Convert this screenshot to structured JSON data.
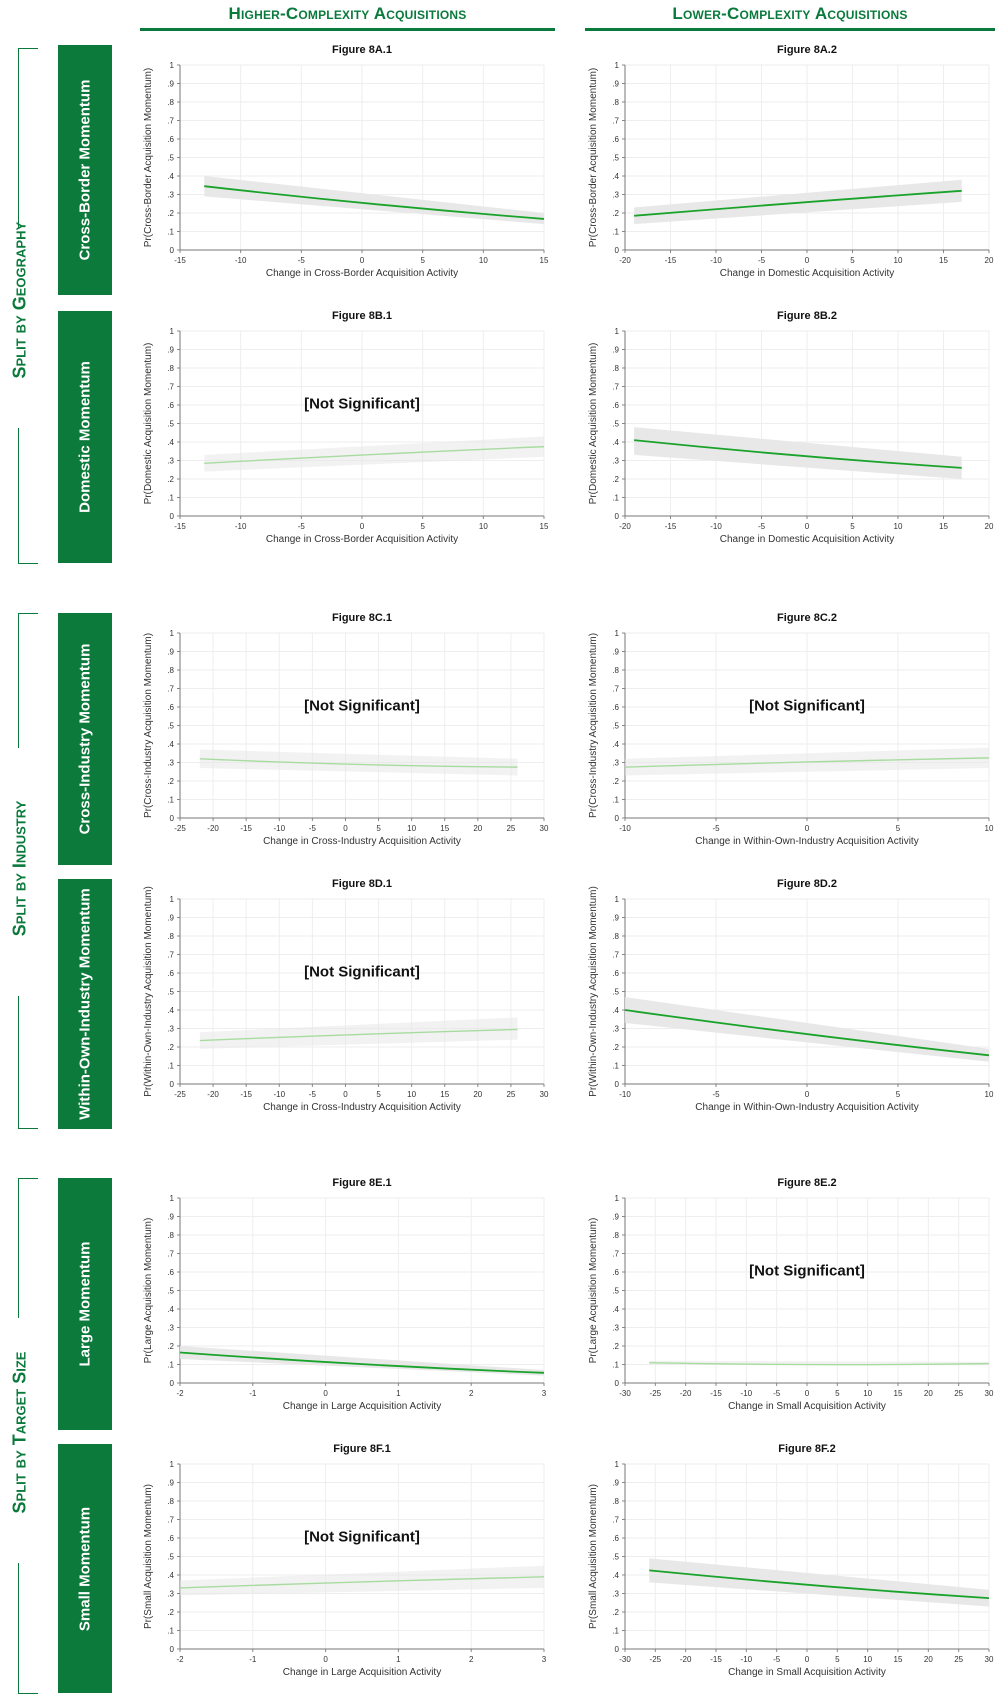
{
  "headers": {
    "higher": "Higher-Complexity Acquisitions",
    "lower": "Lower-Complexity Acquisitions"
  },
  "splits": [
    {
      "label": "Split by Geography"
    },
    {
      "label": "Split by Industry"
    },
    {
      "label": "Split by Target Size"
    }
  ],
  "rows": [
    {
      "label": "Cross-Border Momentum"
    },
    {
      "label": "Domestic Momentum"
    },
    {
      "label": "Cross-Industry Momentum"
    },
    {
      "label": "Within-Own-Industry Momentum"
    },
    {
      "label": "Large Momentum"
    },
    {
      "label": "Small Momentum"
    }
  ],
  "not_significant_label": "[Not Significant]",
  "colors": {
    "brand_green": "#0a7a3c",
    "line_sig": "#1aa32a",
    "line_ns": "#a8dba0",
    "ci_band": "#e6e6e6"
  },
  "chart_data": [
    {
      "type": "line",
      "title": "Figure 8A.1",
      "xlabel": "Change in Cross-Border Acquisition Activity",
      "ylabel": "Pr(Cross-Border Acquisition Momentum)",
      "xlim": [
        -15,
        15
      ],
      "xticks": [
        "-15",
        "-10",
        "-5",
        "0",
        "5",
        "10",
        "15"
      ],
      "ylim": [
        0,
        1
      ],
      "yticks": [
        "0",
        ".1",
        ".2",
        ".3",
        ".4",
        ".5",
        ".6",
        ".7",
        ".8",
        ".9",
        "1"
      ],
      "significant": true,
      "x": [
        -13,
        15
      ],
      "y": [
        0.345,
        0.168
      ],
      "ci_low": [
        0.29,
        0.14
      ],
      "ci_high": [
        0.4,
        0.2
      ]
    },
    {
      "type": "line",
      "title": "Figure 8A.2",
      "xlabel": "Change in Domestic Acquisition Activity",
      "ylabel": "Pr(Cross-Border Acquisition Momentum)",
      "xlim": [
        -20,
        20
      ],
      "xticks": [
        "-20",
        "-15",
        "-10",
        "-5",
        "0",
        "5",
        "10",
        "15",
        "20"
      ],
      "ylim": [
        0,
        1
      ],
      "yticks": [
        "0",
        ".1",
        ".2",
        ".3",
        ".4",
        ".5",
        ".6",
        ".7",
        ".8",
        ".9",
        "1"
      ],
      "significant": true,
      "x": [
        -19,
        17
      ],
      "y": [
        0.185,
        0.32
      ],
      "ci_low": [
        0.14,
        0.26
      ],
      "ci_high": [
        0.23,
        0.38
      ]
    },
    {
      "type": "line",
      "title": "Figure 8B.1",
      "xlabel": "Change in Cross-Border Acquisition Activity",
      "ylabel": "Pr(Domestic Acquisition Momentum)",
      "xlim": [
        -15,
        15
      ],
      "xticks": [
        "-15",
        "-10",
        "-5",
        "0",
        "5",
        "10",
        "15"
      ],
      "ylim": [
        0,
        1
      ],
      "yticks": [
        "0",
        ".1",
        ".2",
        ".3",
        ".4",
        ".5",
        ".6",
        ".7",
        ".8",
        ".9",
        "1"
      ],
      "significant": false,
      "x": [
        -13,
        15
      ],
      "y": [
        0.285,
        0.375
      ],
      "ci_low": [
        0.24,
        0.32
      ],
      "ci_high": [
        0.33,
        0.43
      ]
    },
    {
      "type": "line",
      "title": "Figure 8B.2",
      "xlabel": "Change in Domestic Acquisition Activity",
      "ylabel": "Pr(Domestic Acquisition Momentum)",
      "xlim": [
        -20,
        20
      ],
      "xticks": [
        "-20",
        "-15",
        "-10",
        "-5",
        "0",
        "5",
        "10",
        "15",
        "20"
      ],
      "ylim": [
        0,
        1
      ],
      "yticks": [
        "0",
        ".1",
        ".2",
        ".3",
        ".4",
        ".5",
        ".6",
        ".7",
        ".8",
        ".9",
        "1"
      ],
      "significant": true,
      "x": [
        -19,
        17
      ],
      "y": [
        0.41,
        0.26
      ],
      "ci_low": [
        0.33,
        0.2
      ],
      "ci_high": [
        0.48,
        0.32
      ]
    },
    {
      "type": "line",
      "title": "Figure 8C.1",
      "xlabel": "Change in Cross-Industry Acquisition Activity",
      "ylabel": "Pr(Cross-Industry Acquisition Momentum)",
      "xlim": [
        -25,
        30
      ],
      "xticks": [
        "-25",
        "-20",
        "-15",
        "-10",
        "-5",
        "0",
        "5",
        "10",
        "15",
        "20",
        "25",
        "30"
      ],
      "ylim": [
        0,
        1
      ],
      "yticks": [
        "0",
        ".1",
        ".2",
        ".3",
        ".4",
        ".5",
        ".6",
        ".7",
        ".8",
        ".9",
        "1"
      ],
      "significant": false,
      "x": [
        -22,
        26
      ],
      "y": [
        0.32,
        0.275
      ],
      "ci_low": [
        0.27,
        0.23
      ],
      "ci_high": [
        0.37,
        0.32
      ]
    },
    {
      "type": "line",
      "title": "Figure 8C.2",
      "xlabel": "Change in Within-Own-Industry Acquisition Activity",
      "ylabel": "Pr(Cross-Industry Acquisition Momentum)",
      "xlim": [
        -10,
        10
      ],
      "xticks": [
        "-10",
        "-5",
        "0",
        "5",
        "10"
      ],
      "ylim": [
        0,
        1
      ],
      "yticks": [
        "0",
        ".1",
        ".2",
        ".3",
        ".4",
        ".5",
        ".6",
        ".7",
        ".8",
        ".9",
        "1"
      ],
      "significant": false,
      "x": [
        -10,
        10
      ],
      "y": [
        0.275,
        0.325
      ],
      "ci_low": [
        0.23,
        0.27
      ],
      "ci_high": [
        0.32,
        0.38
      ]
    },
    {
      "type": "line",
      "title": "Figure 8D.1",
      "xlabel": "Change in Cross-Industry Acquisition Activity",
      "ylabel": "Pr(Within-Own-Industry Acquisition Momentum)",
      "xlim": [
        -25,
        30
      ],
      "xticks": [
        "-25",
        "-20",
        "-15",
        "-10",
        "-5",
        "0",
        "5",
        "10",
        "15",
        "20",
        "25",
        "30"
      ],
      "ylim": [
        0,
        1
      ],
      "yticks": [
        "0",
        ".1",
        ".2",
        ".3",
        ".4",
        ".5",
        ".6",
        ".7",
        ".8",
        ".9",
        "1"
      ],
      "significant": false,
      "x": [
        -22,
        26
      ],
      "y": [
        0.235,
        0.295
      ],
      "ci_low": [
        0.19,
        0.24
      ],
      "ci_high": [
        0.28,
        0.36
      ]
    },
    {
      "type": "line",
      "title": "Figure 8D.2",
      "xlabel": "Change in Within-Own-Industry Acquisition Activity",
      "ylabel": "Pr(Within-Own-Industry Acquisition Momentum)",
      "xlim": [
        -10,
        10
      ],
      "xticks": [
        "-10",
        "-5",
        "0",
        "5",
        "10"
      ],
      "ylim": [
        0,
        1
      ],
      "yticks": [
        "0",
        ".1",
        ".2",
        ".3",
        ".4",
        ".5",
        ".6",
        ".7",
        ".8",
        ".9",
        "1"
      ],
      "significant": true,
      "x": [
        -10,
        10
      ],
      "y": [
        0.4,
        0.155
      ],
      "ci_low": [
        0.33,
        0.12
      ],
      "ci_high": [
        0.47,
        0.19
      ]
    },
    {
      "type": "line",
      "title": "Figure 8E.1",
      "xlabel": "Change in Large Acquisition Activity",
      "ylabel": "Pr(Large Acquisition Momentum)",
      "xlim": [
        -2,
        3
      ],
      "xticks": [
        "-2",
        "-1",
        "0",
        "1",
        "2",
        "3"
      ],
      "ylim": [
        0,
        1
      ],
      "yticks": [
        "0",
        ".1",
        ".2",
        ".3",
        ".4",
        ".5",
        ".6",
        ".7",
        ".8",
        ".9",
        "1"
      ],
      "significant": true,
      "x": [
        -2,
        3
      ],
      "y": [
        0.165,
        0.055
      ],
      "ci_low": [
        0.13,
        0.04
      ],
      "ci_high": [
        0.2,
        0.07
      ]
    },
    {
      "type": "line",
      "title": "Figure 8E.2",
      "xlabel": "Change in Small Acquisition Activity",
      "ylabel": "Pr(Large Acquisition Momentum)",
      "xlim": [
        -30,
        30
      ],
      "xticks": [
        "-30",
        "-25",
        "-20",
        "-15",
        "-10",
        "-5",
        "0",
        "5",
        "10",
        "15",
        "20",
        "25",
        "30"
      ],
      "ylim": [
        0,
        1
      ],
      "yticks": [
        "0",
        ".1",
        ".2",
        ".3",
        ".4",
        ".5",
        ".6",
        ".7",
        ".8",
        ".9",
        "1"
      ],
      "significant": false,
      "x": [
        -26,
        30
      ],
      "y": [
        0.11,
        0.105
      ],
      "ci_low": [
        0.1,
        0.095
      ],
      "ci_high": [
        0.12,
        0.115
      ]
    },
    {
      "type": "line",
      "title": "Figure 8F.1",
      "xlabel": "Change in Large Acquisition Activity",
      "ylabel": "Pr(Small Acquisition Momentum)",
      "xlim": [
        -2,
        3
      ],
      "xticks": [
        "-2",
        "-1",
        "0",
        "1",
        "2",
        "3"
      ],
      "ylim": [
        0,
        1
      ],
      "yticks": [
        "0",
        ".1",
        ".2",
        ".3",
        ".4",
        ".5",
        ".6",
        ".7",
        ".8",
        ".9",
        "1"
      ],
      "significant": false,
      "x": [
        -2,
        3
      ],
      "y": [
        0.33,
        0.39
      ],
      "ci_low": [
        0.29,
        0.33
      ],
      "ci_high": [
        0.37,
        0.45
      ]
    },
    {
      "type": "line",
      "title": "Figure 8F.2",
      "xlabel": "Change in Small Acquisition Activity",
      "ylabel": "Pr(Small Acquisition Momentum)",
      "xlim": [
        -30,
        30
      ],
      "xticks": [
        "-30",
        "-25",
        "-20",
        "-15",
        "-10",
        "-5",
        "0",
        "5",
        "10",
        "15",
        "20",
        "25",
        "30"
      ],
      "ylim": [
        0,
        1
      ],
      "yticks": [
        "0",
        ".1",
        ".2",
        ".3",
        ".4",
        ".5",
        ".6",
        ".7",
        ".8",
        ".9",
        "1"
      ],
      "significant": true,
      "x": [
        -26,
        30
      ],
      "y": [
        0.425,
        0.275
      ],
      "ci_low": [
        0.36,
        0.23
      ],
      "ci_high": [
        0.49,
        0.32
      ]
    }
  ]
}
